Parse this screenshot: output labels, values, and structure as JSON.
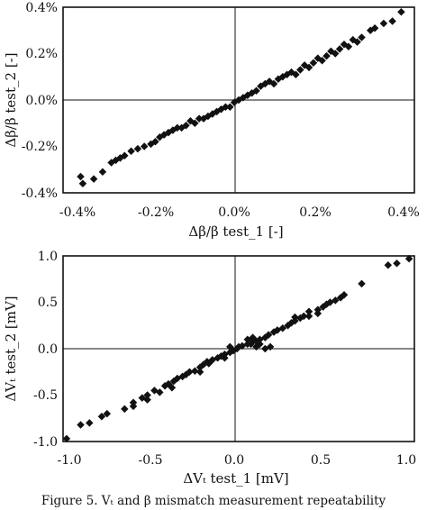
{
  "chart_data": [
    {
      "type": "scatter",
      "xlabel": "Δβ/β  test_1  [-]",
      "ylabel": "Δβ/β  test_2  [-]",
      "xlim": [
        -0.4,
        0.4
      ],
      "ylim": [
        -0.4,
        0.4
      ],
      "unit": "%",
      "x_ticks": [
        "-0.4%",
        "-0.2%",
        "0.0%",
        "0.2%",
        "0.4%"
      ],
      "y_ticks": [
        "-0.4%",
        "-0.2%",
        "0.0%",
        "0.2%",
        "0.4%"
      ],
      "grid": false,
      "zero_lines": true,
      "points": [
        [
          -0.36,
          -0.33
        ],
        [
          -0.355,
          -0.36
        ],
        [
          -0.33,
          -0.34
        ],
        [
          -0.31,
          -0.31
        ],
        [
          -0.29,
          -0.27
        ],
        [
          -0.28,
          -0.26
        ],
        [
          -0.27,
          -0.25
        ],
        [
          -0.26,
          -0.24
        ],
        [
          -0.245,
          -0.22
        ],
        [
          -0.23,
          -0.21
        ],
        [
          -0.215,
          -0.2
        ],
        [
          -0.2,
          -0.19
        ],
        [
          -0.19,
          -0.18
        ],
        [
          -0.18,
          -0.16
        ],
        [
          -0.17,
          -0.15
        ],
        [
          -0.16,
          -0.14
        ],
        [
          -0.15,
          -0.13
        ],
        [
          -0.14,
          -0.12
        ],
        [
          -0.13,
          -0.12
        ],
        [
          -0.12,
          -0.11
        ],
        [
          -0.11,
          -0.09
        ],
        [
          -0.1,
          -0.1
        ],
        [
          -0.09,
          -0.08
        ],
        [
          -0.08,
          -0.08
        ],
        [
          -0.07,
          -0.07
        ],
        [
          -0.06,
          -0.06
        ],
        [
          -0.05,
          -0.05
        ],
        [
          -0.04,
          -0.04
        ],
        [
          -0.03,
          -0.03
        ],
        [
          -0.02,
          -0.03
        ],
        [
          -0.01,
          -0.01
        ],
        [
          0.0,
          0.0
        ],
        [
          0.01,
          0.01
        ],
        [
          0.02,
          0.02
        ],
        [
          0.03,
          0.03
        ],
        [
          0.04,
          0.04
        ],
        [
          0.05,
          0.06
        ],
        [
          0.06,
          0.07
        ],
        [
          0.07,
          0.08
        ],
        [
          0.08,
          0.07
        ],
        [
          0.09,
          0.09
        ],
        [
          0.1,
          0.1
        ],
        [
          0.11,
          0.11
        ],
        [
          0.12,
          0.12
        ],
        [
          0.13,
          0.11
        ],
        [
          0.14,
          0.13
        ],
        [
          0.15,
          0.15
        ],
        [
          0.16,
          0.14
        ],
        [
          0.17,
          0.16
        ],
        [
          0.18,
          0.18
        ],
        [
          0.19,
          0.17
        ],
        [
          0.2,
          0.19
        ],
        [
          0.21,
          0.21
        ],
        [
          0.22,
          0.2
        ],
        [
          0.23,
          0.22
        ],
        [
          0.24,
          0.24
        ],
        [
          0.25,
          0.23
        ],
        [
          0.26,
          0.26
        ],
        [
          0.27,
          0.25
        ],
        [
          0.28,
          0.27
        ],
        [
          0.3,
          0.3
        ],
        [
          0.31,
          0.31
        ],
        [
          0.33,
          0.33
        ],
        [
          0.35,
          0.34
        ],
        [
          0.37,
          0.38
        ]
      ]
    },
    {
      "type": "scatter",
      "xlabel": "ΔVₜ test_1  [mV]",
      "ylabel": "ΔVₜ test_2  [mV]",
      "xlim": [
        -1.0,
        1.0
      ],
      "ylim": [
        -1.0,
        1.0
      ],
      "x_ticks": [
        "-1.0",
        "-0.5",
        "0.0",
        "0.5",
        "1.0"
      ],
      "y_ticks": [
        "1.0",
        "0.5",
        "0.0",
        "-0.5",
        "-1.0"
      ],
      "grid": false,
      "zero_lines": true,
      "points": [
        [
          -0.98,
          -0.97
        ],
        [
          -0.9,
          -0.82
        ],
        [
          -0.85,
          -0.8
        ],
        [
          -0.78,
          -0.73
        ],
        [
          -0.75,
          -0.7
        ],
        [
          -0.65,
          -0.65
        ],
        [
          -0.6,
          -0.58
        ],
        [
          -0.55,
          -0.53
        ],
        [
          -0.52,
          -0.5
        ],
        [
          -0.48,
          -0.45
        ],
        [
          -0.45,
          -0.47
        ],
        [
          -0.42,
          -0.4
        ],
        [
          -0.4,
          -0.38
        ],
        [
          -0.37,
          -0.35
        ],
        [
          -0.35,
          -0.32
        ],
        [
          -0.32,
          -0.3
        ],
        [
          -0.3,
          -0.28
        ],
        [
          -0.28,
          -0.25
        ],
        [
          -0.25,
          -0.24
        ],
        [
          -0.22,
          -0.2
        ],
        [
          -0.2,
          -0.17
        ],
        [
          -0.17,
          -0.16
        ],
        [
          -0.15,
          -0.12
        ],
        [
          -0.12,
          -0.1
        ],
        [
          -0.1,
          -0.08
        ],
        [
          -0.08,
          -0.06
        ],
        [
          -0.05,
          -0.04
        ],
        [
          -0.03,
          -0.02
        ],
        [
          -0.01,
          0.0
        ],
        [
          0.0,
          0.02
        ],
        [
          0.02,
          0.03
        ],
        [
          0.05,
          0.05
        ],
        [
          0.07,
          0.05
        ],
        [
          0.08,
          0.08
        ],
        [
          0.1,
          0.08
        ],
        [
          0.12,
          0.1
        ],
        [
          0.15,
          0.12
        ],
        [
          0.17,
          0.15
        ],
        [
          0.2,
          0.18
        ],
        [
          0.22,
          0.2
        ],
        [
          0.25,
          0.22
        ],
        [
          0.28,
          0.25
        ],
        [
          0.3,
          0.28
        ],
        [
          0.32,
          0.3
        ],
        [
          0.35,
          0.33
        ],
        [
          0.37,
          0.35
        ],
        [
          0.4,
          0.4
        ],
        [
          0.45,
          0.42
        ],
        [
          0.48,
          0.45
        ],
        [
          0.5,
          0.48
        ],
        [
          0.52,
          0.5
        ],
        [
          0.55,
          0.52
        ],
        [
          0.58,
          0.55
        ],
        [
          0.6,
          0.58
        ],
        [
          0.7,
          0.7
        ],
        [
          0.85,
          0.9
        ],
        [
          0.9,
          0.92
        ],
        [
          0.97,
          0.97
        ],
        [
          0.1,
          0.02
        ],
        [
          0.12,
          0.05
        ],
        [
          0.15,
          0.0
        ],
        [
          0.18,
          0.02
        ],
        [
          0.08,
          0.12
        ],
        [
          0.05,
          0.1
        ],
        [
          -0.05,
          0.02
        ],
        [
          -0.08,
          -0.1
        ],
        [
          -0.18,
          -0.14
        ],
        [
          -0.22,
          -0.25
        ],
        [
          -0.38,
          -0.42
        ],
        [
          -0.52,
          -0.55
        ],
        [
          -0.6,
          -0.62
        ],
        [
          0.4,
          0.35
        ],
        [
          0.45,
          0.38
        ],
        [
          0.32,
          0.34
        ]
      ]
    }
  ],
  "caption": "Figure 5. Vₜ and β mismatch measurement repeatability"
}
